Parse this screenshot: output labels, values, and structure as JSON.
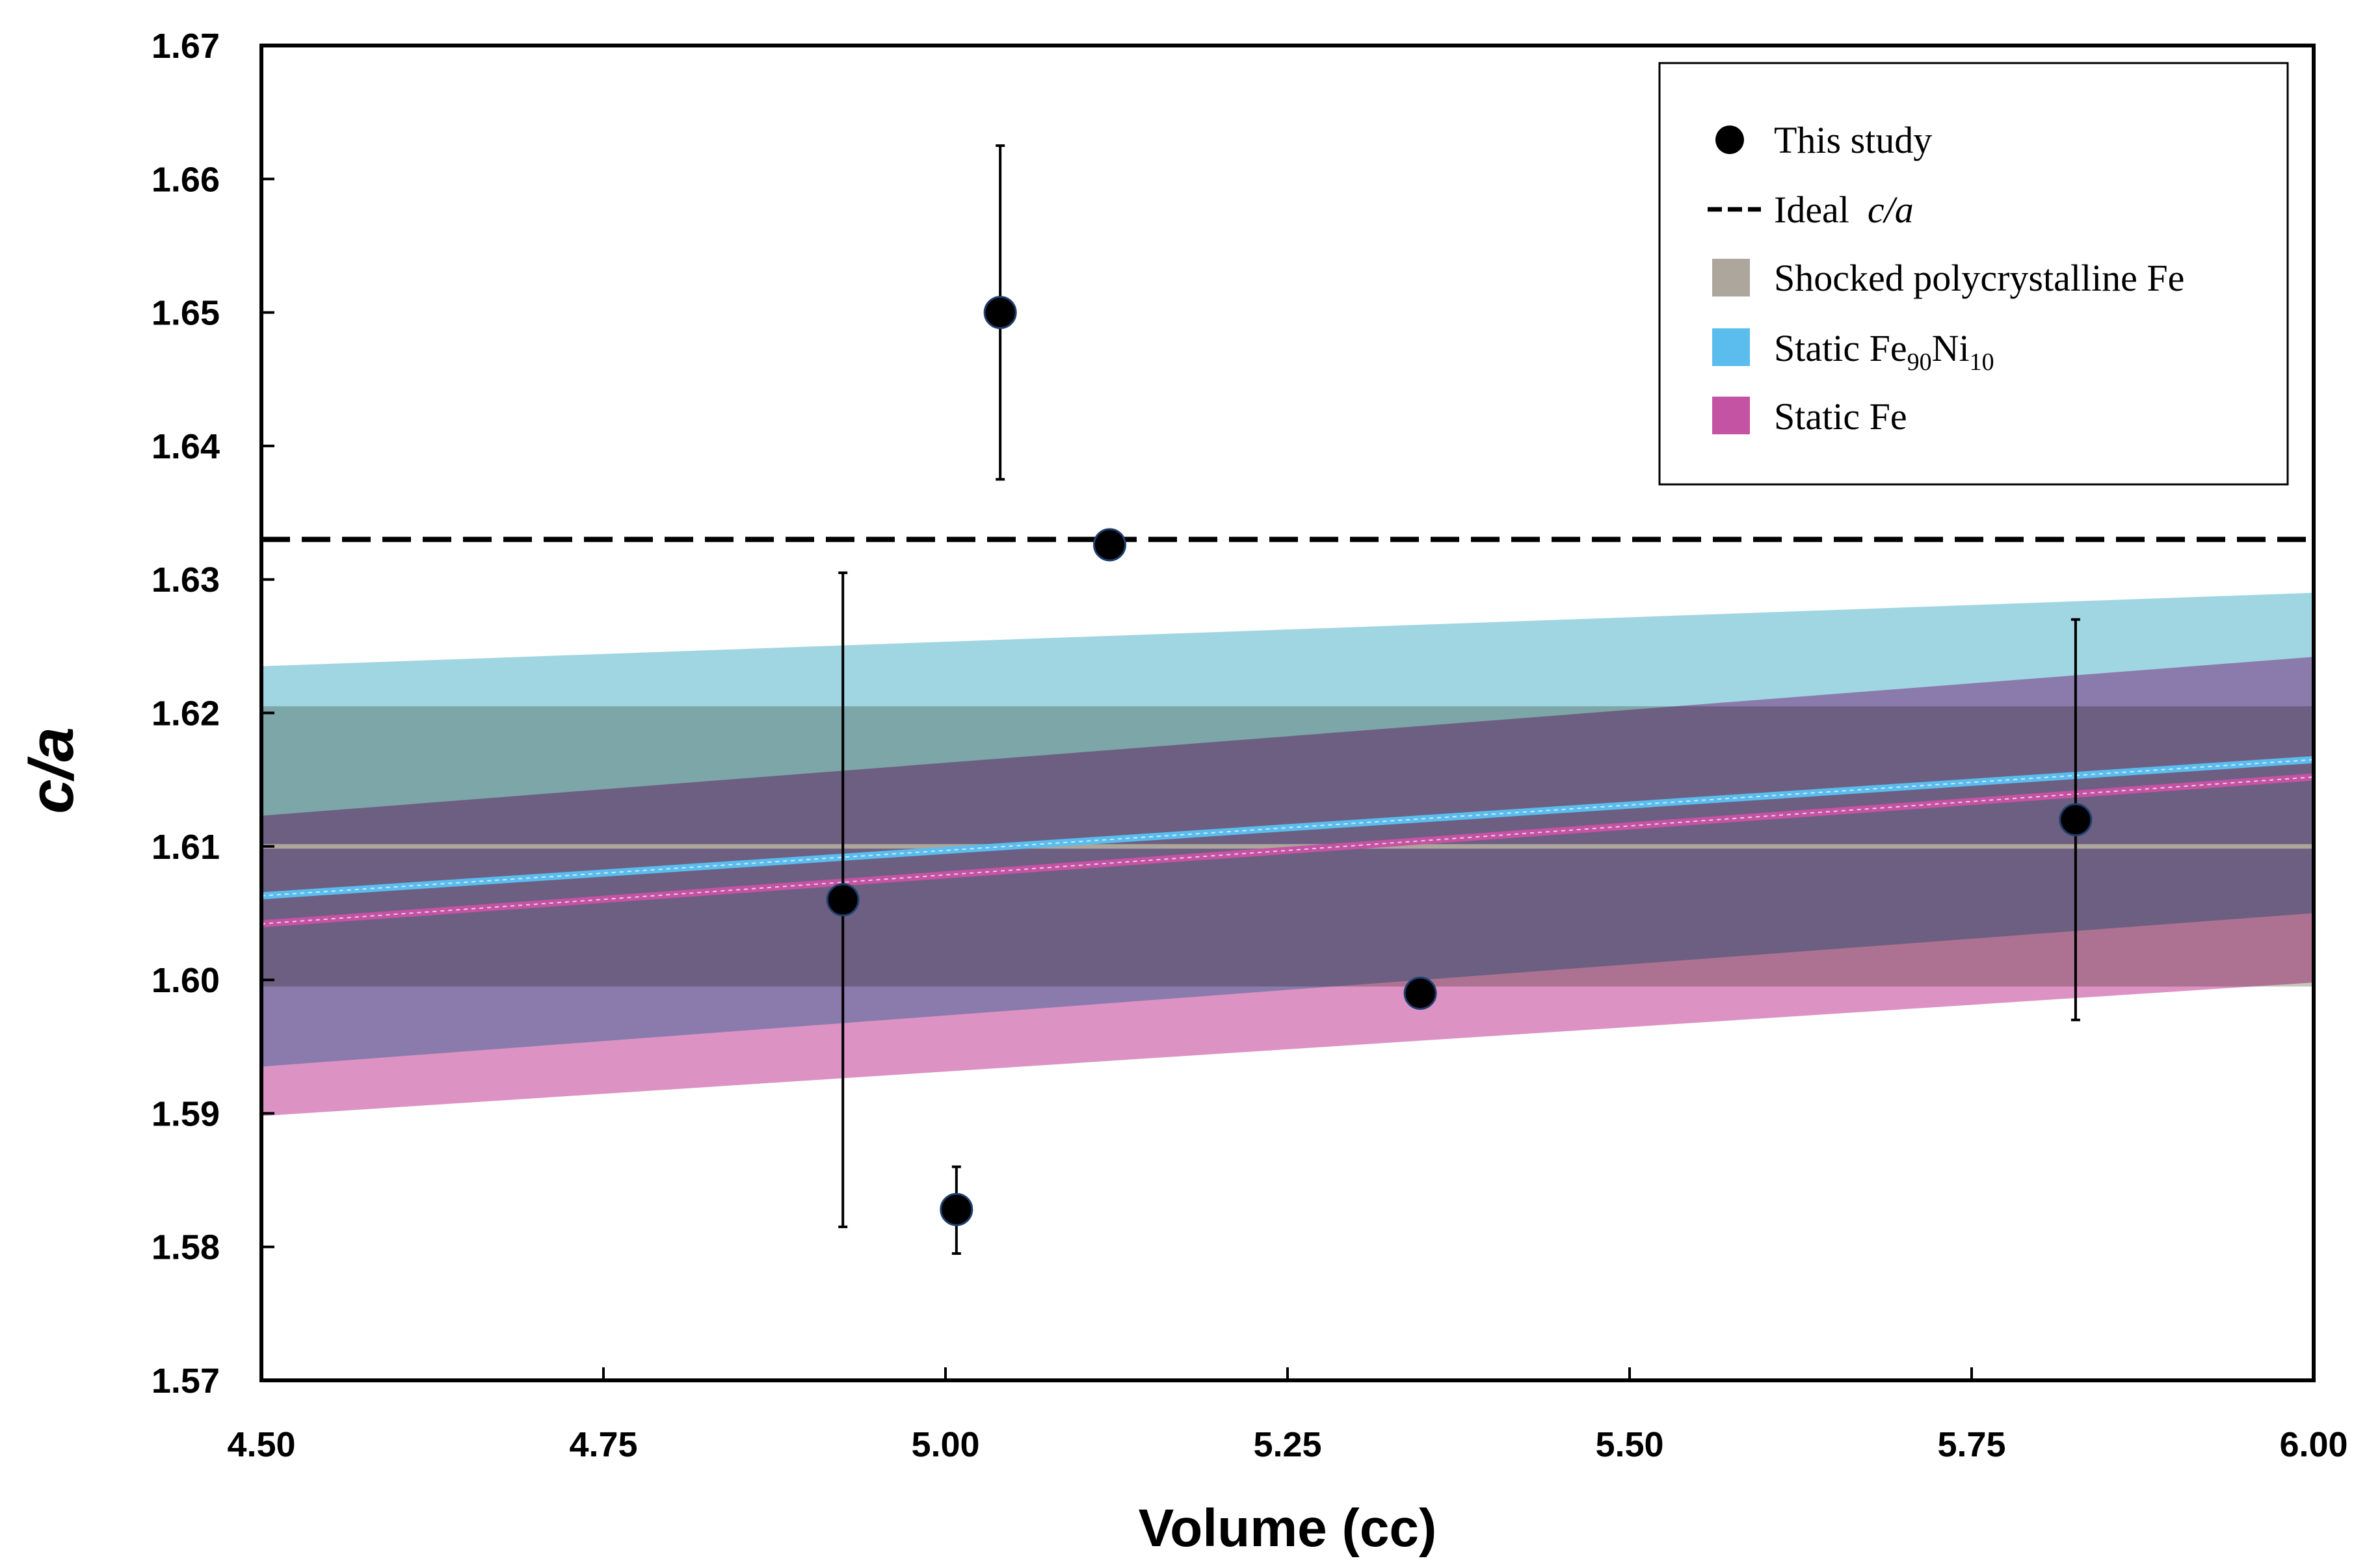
{
  "chart_data": {
    "type": "scatter",
    "title": "",
    "xlabel": "Volume (cc)",
    "ylabel": "c/a",
    "xlim": [
      4.5,
      6.0
    ],
    "ylim": [
      1.57,
      1.67
    ],
    "x_ticks": [
      "4.50",
      "4.75",
      "5.00",
      "5.25",
      "5.50",
      "5.75",
      "6.00"
    ],
    "y_ticks": [
      "1.57",
      "1.58",
      "1.59",
      "1.60",
      "1.61",
      "1.62",
      "1.63",
      "1.64",
      "1.65",
      "1.66",
      "1.67"
    ],
    "grid": false,
    "legend_position": "top-right",
    "series": [
      {
        "name": "This study",
        "kind": "points",
        "color": "#000000",
        "points": [
          {
            "x": 4.925,
            "y": 1.606,
            "err_low": 1.5815,
            "err_high": 1.6305
          },
          {
            "x": 5.008,
            "y": 1.5828,
            "err_low": 1.5795,
            "err_high": 1.586
          },
          {
            "x": 5.04,
            "y": 1.65,
            "err_low": 1.6375,
            "err_high": 1.6625
          },
          {
            "x": 5.12,
            "y": 1.6326,
            "err_low": null,
            "err_high": null
          },
          {
            "x": 5.347,
            "y": 1.599,
            "err_low": null,
            "err_high": null
          },
          {
            "x": 5.826,
            "y": 1.612,
            "err_low": 1.597,
            "err_high": 1.627
          }
        ]
      },
      {
        "name": "Ideal",
        "name_italic": "c/a",
        "kind": "hline",
        "color": "#000000",
        "y": 1.633
      },
      {
        "name": "Shocked polycrystalline Fe",
        "kind": "band",
        "color": "#aca69c",
        "band_color": "#bdbcb3",
        "line": [
          [
            4.5,
            1.61
          ],
          [
            6.0,
            1.61
          ]
        ],
        "upper": [
          [
            4.5,
            1.6205
          ],
          [
            6.0,
            1.6205
          ]
        ],
        "lower": [
          [
            4.5,
            1.5995
          ],
          [
            6.0,
            1.5995
          ]
        ]
      },
      {
        "name": "Static Fe",
        "sub1": "90",
        "name2": "Ni",
        "sub2": "10",
        "kind": "band",
        "color": "#5bbcee",
        "band_color": "#8fcfdc",
        "line": [
          [
            4.5,
            1.6063
          ],
          [
            6.0,
            1.6165
          ]
        ],
        "upper": [
          [
            4.5,
            1.6235
          ],
          [
            6.0,
            1.629
          ]
        ],
        "lower": [
          [
            4.5,
            1.5935
          ],
          [
            6.0,
            1.605
          ]
        ]
      },
      {
        "name": "Static Fe",
        "kind": "band",
        "color": "#c453a3",
        "band_color": "#d77fba",
        "line": [
          [
            4.5,
            1.6042
          ],
          [
            6.0,
            1.6152
          ]
        ],
        "upper": [
          [
            4.5,
            1.6123
          ],
          [
            6.0,
            1.6242
          ]
        ],
        "lower": [
          [
            4.5,
            1.5898
          ],
          [
            6.0,
            1.5998
          ]
        ]
      }
    ]
  }
}
